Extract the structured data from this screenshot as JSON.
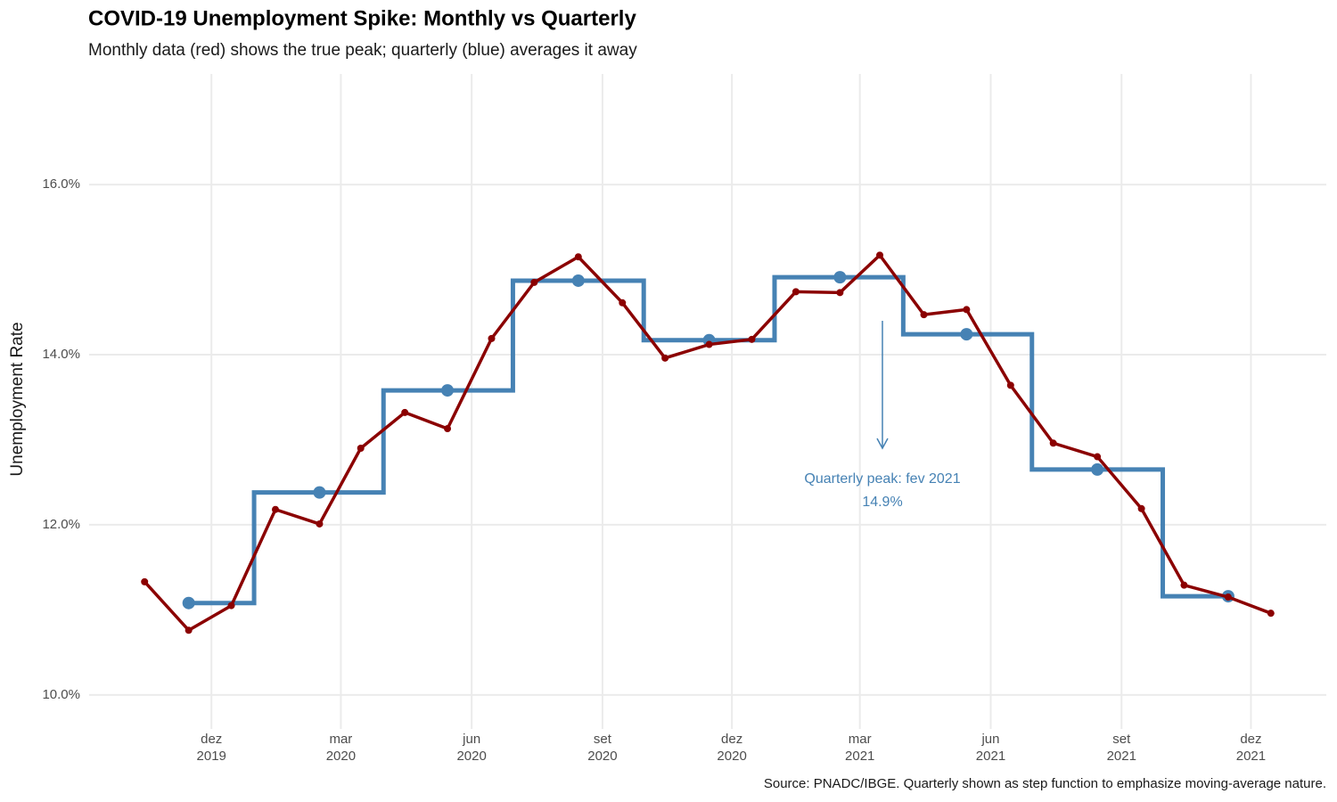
{
  "chart_data": {
    "type": "line",
    "title": "COVID-19 Unemployment Spike: Monthly vs Quarterly",
    "subtitle": "Monthly data (red) shows the true peak; quarterly (blue) averages it away",
    "y_label": "Unemployment Rate",
    "caption": "Source: PNADC/IBGE. Quarterly shown as step function to emphasize moving-average nature.",
    "annotation": {
      "lines": [
        "Quarterly peak: fev 2021",
        "14.9%"
      ],
      "color": "#4682b4"
    },
    "xlim": [
      "2019-09-06",
      "2022-01-23"
    ],
    "xticks": [
      {
        "value": "2019-12",
        "label": "dez 2019"
      },
      {
        "value": "2020-03",
        "label": "mar 2020"
      },
      {
        "value": "2020-06",
        "label": "jun 2020"
      },
      {
        "value": "2020-09",
        "label": "set 2020"
      },
      {
        "value": "2020-12",
        "label": "dez 2020"
      },
      {
        "value": "2021-03",
        "label": "mar 2021"
      },
      {
        "value": "2021-06",
        "label": "jun 2021"
      },
      {
        "value": "2021-09",
        "label": "set 2021"
      },
      {
        "value": "2021-12",
        "label": "dez 2021"
      }
    ],
    "ylim": [
      9.6,
      17.3
    ],
    "yticks": [
      {
        "value": 10,
        "label": "10.0%"
      },
      {
        "value": 12,
        "label": "12.0%"
      },
      {
        "value": 14,
        "label": "14.0%"
      },
      {
        "value": 16,
        "label": "16.0%"
      }
    ],
    "grid": true,
    "series": [
      {
        "color": "#4682b4",
        "step": "mid",
        "point_radius": 7,
        "x": [
          "2019-11",
          "2020-02",
          "2020-05",
          "2020-08",
          "2020-11",
          "2021-02",
          "2021-05",
          "2021-08",
          "2021-11"
        ],
        "values": [
          11.08,
          12.38,
          13.58,
          14.87,
          14.17,
          14.91,
          14.24,
          12.65,
          11.16
        ]
      },
      {
        "color": "#8b0000",
        "point_radius": 4,
        "x": [
          "2019-10",
          "2019-11",
          "2019-12",
          "2020-01",
          "2020-02",
          "2020-03",
          "2020-04",
          "2020-05",
          "2020-06",
          "2020-07",
          "2020-08",
          "2020-09",
          "2020-10",
          "2020-11",
          "2020-12",
          "2021-01",
          "2021-02",
          "2021-03",
          "2021-04",
          "2021-05",
          "2021-06",
          "2021-07",
          "2021-08",
          "2021-09",
          "2021-10",
          "2021-11",
          "2021-12"
        ],
        "values": [
          11.33,
          10.76,
          11.05,
          12.18,
          12.01,
          12.9,
          13.32,
          13.13,
          14.19,
          14.85,
          15.15,
          14.61,
          13.96,
          14.12,
          14.18,
          14.74,
          14.73,
          15.17,
          14.47,
          14.53,
          13.64,
          12.96,
          12.8,
          12.19,
          11.29,
          11.15,
          10.96
        ]
      }
    ]
  }
}
